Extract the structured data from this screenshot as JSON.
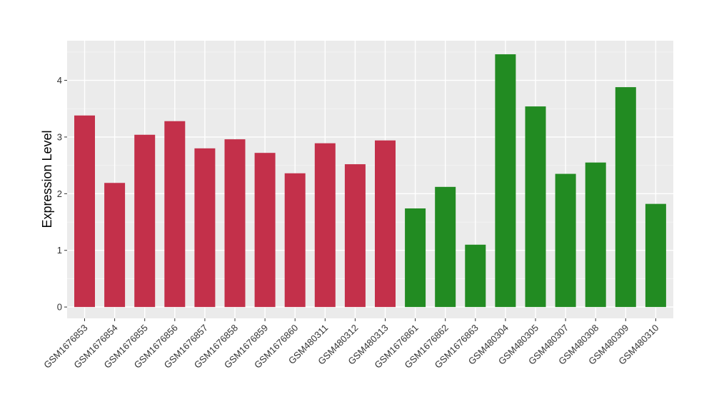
{
  "chart_data": {
    "type": "bar",
    "title": "",
    "xlabel": "",
    "ylabel": "Expression Level",
    "ylim": [
      -0.2,
      4.7
    ],
    "yticks": [
      0,
      1,
      2,
      3,
      4
    ],
    "grid": true,
    "background": "#EBEBEB",
    "group_colors": {
      "red": "#C3304A",
      "green": "#228B22"
    },
    "categories": [
      "GSM1676853",
      "GSM1676854",
      "GSM1676855",
      "GSM1676856",
      "GSM1676857",
      "GSM1676858",
      "GSM1676859",
      "GSM1676860",
      "GSM480311",
      "GSM480312",
      "GSM480313",
      "GSM1676861",
      "GSM1676862",
      "GSM1676863",
      "GSM480304",
      "GSM480305",
      "GSM480307",
      "GSM480308",
      "GSM480309",
      "GSM480310"
    ],
    "values": [
      3.38,
      2.19,
      3.04,
      3.28,
      2.8,
      2.96,
      2.72,
      2.36,
      2.89,
      2.52,
      2.94,
      1.74,
      2.12,
      1.1,
      4.46,
      3.54,
      2.35,
      2.55,
      3.88,
      1.82
    ],
    "groups": [
      "red",
      "red",
      "red",
      "red",
      "red",
      "red",
      "red",
      "red",
      "red",
      "red",
      "red",
      "green",
      "green",
      "green",
      "green",
      "green",
      "green",
      "green",
      "green",
      "green"
    ]
  }
}
